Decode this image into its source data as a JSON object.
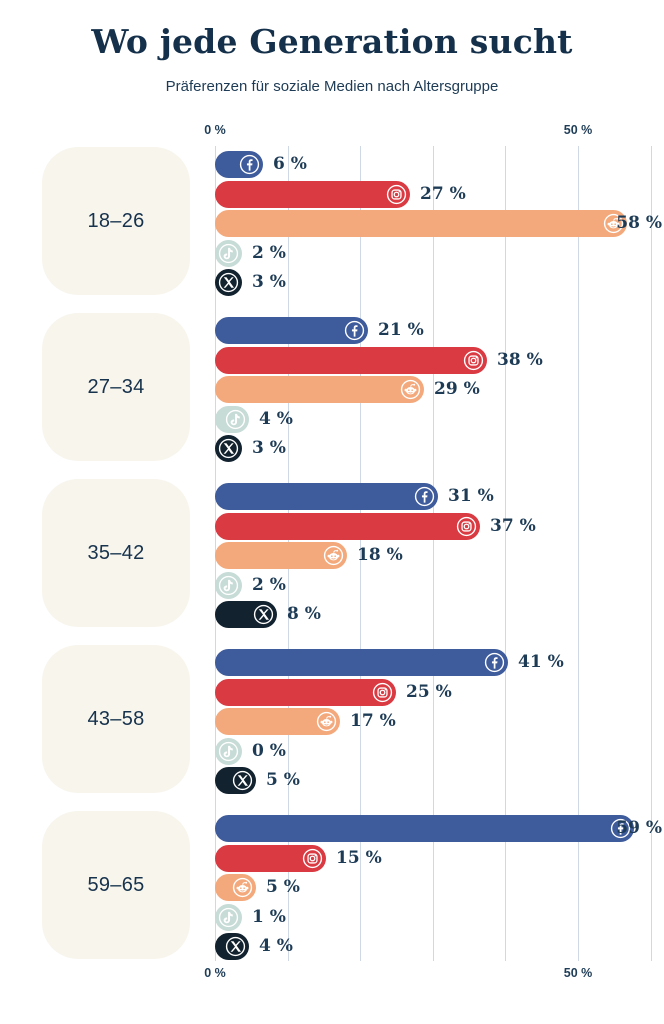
{
  "chart_data": {
    "type": "bar",
    "orientation": "horizontal",
    "title": "Wo jede Generation sucht",
    "subtitle": "Präferenzen für soziale Medien nach Altersgruppe",
    "value_suffix": " %",
    "axis": {
      "min": 0,
      "max": 60,
      "gridlines_percent": [
        0,
        10,
        20,
        30,
        40,
        50,
        60
      ],
      "ticks": [
        {
          "value": 0,
          "label": "0 %"
        },
        {
          "value": 50,
          "label": "50 %"
        }
      ],
      "ticks_shown_top_and_bottom": true,
      "grid": true
    },
    "series": [
      {
        "name": "Facebook",
        "icon": "facebook-icon",
        "color": "#3e5b9b"
      },
      {
        "name": "Instagram",
        "icon": "instagram-icon",
        "color": "#da3a42"
      },
      {
        "name": "Reddit",
        "icon": "reddit-icon",
        "color": "#f4a97c"
      },
      {
        "name": "TikTok",
        "icon": "tiktok-icon",
        "color": "#c7dbd7"
      },
      {
        "name": "X",
        "icon": "x-icon",
        "color": "#12222f"
      }
    ],
    "categories": [
      "18–26",
      "27–34",
      "35–42",
      "43–58",
      "59–65"
    ],
    "groups": [
      {
        "label": "18–26",
        "values": [
          6,
          27,
          58,
          2,
          3
        ],
        "labels": [
          "6 %",
          "27 %",
          "58 %",
          "2 %",
          "3 %"
        ]
      },
      {
        "label": "27–34",
        "values": [
          21,
          38,
          29,
          4,
          3
        ],
        "labels": [
          "21 %",
          "38 %",
          "29 %",
          "4 %",
          "3 %"
        ]
      },
      {
        "label": "35–42",
        "values": [
          31,
          37,
          18,
          2,
          8
        ],
        "labels": [
          "31 %",
          "37 %",
          "18 %",
          "2 %",
          "8 %"
        ]
      },
      {
        "label": "43–58",
        "values": [
          41,
          25,
          17,
          0,
          5
        ],
        "labels": [
          "41 %",
          "25 %",
          "17 %",
          "0 %",
          "5 %"
        ]
      },
      {
        "label": "59–65",
        "values": [
          59,
          15,
          5,
          1,
          4
        ],
        "labels": [
          "59 %",
          "15 %",
          "5 %",
          "1 %",
          "4 %"
        ]
      }
    ],
    "colors": {
      "background": "#ffffff",
      "title_text": "#14304a",
      "subtitle_text": "#1d3b55",
      "value_label_text": "#1d3b55",
      "axis_tick_text": "#1f3d57",
      "gridline": "#cfd9e6",
      "age_card_background": "#f8f5ed",
      "age_card_text": "#16324c",
      "icon_glyph": "#ffffff"
    }
  }
}
